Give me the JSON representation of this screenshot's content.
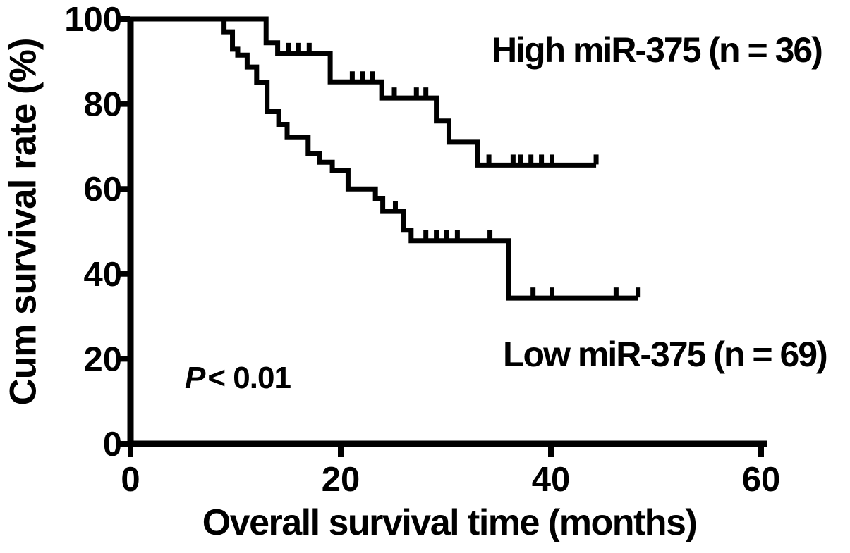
{
  "figure": {
    "background": "#ffffff",
    "curve_color": "#000000",
    "text_color": "#000000"
  },
  "chart_data": {
    "type": "line",
    "subtype": "kaplan-meier-step",
    "title": "",
    "xlabel": "Overall survival time (months)",
    "ylabel": "Cum survival rate (%)",
    "xlim": [
      0,
      60
    ],
    "ylim": [
      0,
      100
    ],
    "xticks": [
      0,
      20,
      40,
      60
    ],
    "yticks": [
      0,
      20,
      40,
      60,
      80,
      100
    ],
    "grid": false,
    "legend_position": "inline-text-annotations",
    "series": [
      {
        "name": "High miR-375 (n = 36)",
        "n": 36,
        "steps_month_pct": [
          [
            0,
            100
          ],
          [
            12.9,
            94.4
          ],
          [
            14.0,
            91.9
          ],
          [
            19.0,
            85.2
          ],
          [
            23.9,
            81.4
          ],
          [
            29.1,
            76.0
          ],
          [
            30.3,
            71.0
          ],
          [
            33.0,
            65.6
          ]
        ],
        "end_month": 44.3,
        "censor_marks_months": [
          15.0,
          16.0,
          17.0,
          21.1,
          22.1,
          23.0,
          25.1,
          27.2,
          28.1,
          34.1,
          36.4,
          37.1,
          38.1,
          39.1,
          40.1,
          44.3
        ]
      },
      {
        "name": "Low miR-375 (n = 69)",
        "n": 69,
        "steps_month_pct": [
          [
            0,
            100
          ],
          [
            8.9,
            97.0
          ],
          [
            9.7,
            92.9
          ],
          [
            10.2,
            91.5
          ],
          [
            11.1,
            88.7
          ],
          [
            12.0,
            85.1
          ],
          [
            13.0,
            78.2
          ],
          [
            14.1,
            75.2
          ],
          [
            14.9,
            72.1
          ],
          [
            16.9,
            68.3
          ],
          [
            18.0,
            66.3
          ],
          [
            19.2,
            64.4
          ],
          [
            20.7,
            60.0
          ],
          [
            23.3,
            57.8
          ],
          [
            24.0,
            54.7
          ],
          [
            26.0,
            50.3
          ],
          [
            26.7,
            47.8
          ],
          [
            36.0,
            34.3
          ]
        ],
        "end_month": 48.3,
        "censor_marks_months": [
          25.2,
          28.1,
          29.1,
          30.1,
          31.1,
          34.2,
          38.3,
          40.1,
          46.2,
          48.3
        ]
      }
    ],
    "annotations": {
      "p_label_symbol": "P",
      "p_label_rest": "< 0.01",
      "series_label_high": "High miR-375 (n = 36)",
      "series_label_low": "Low miR-375 (n = 69)"
    }
  }
}
